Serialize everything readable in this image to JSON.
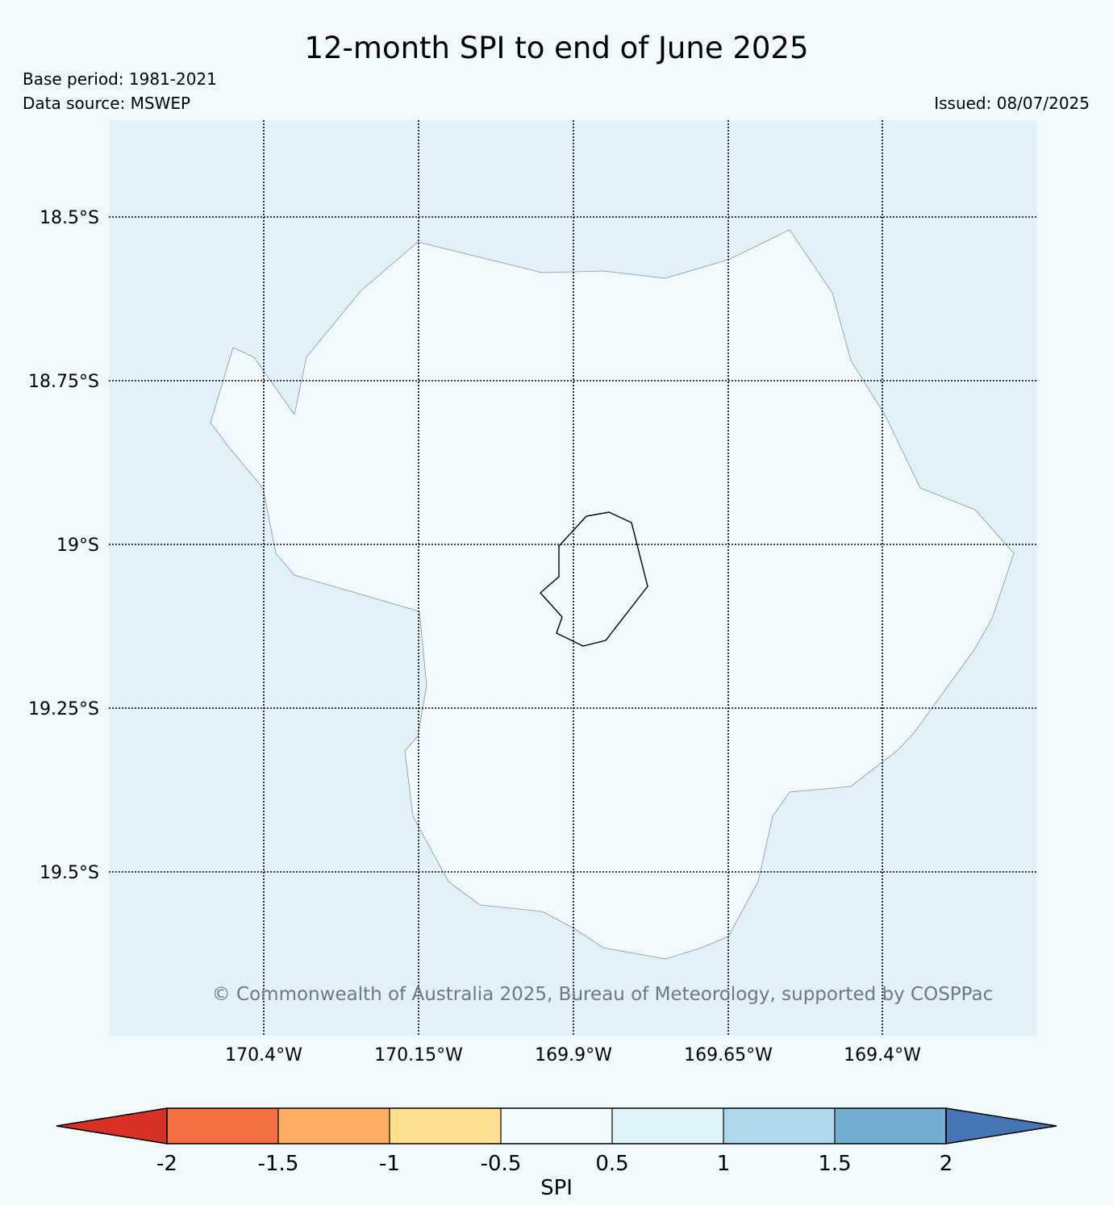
{
  "title": "12-month SPI to end of June 2025",
  "base_period": "Base period: 1981-2021",
  "data_source": "Data source: MSWEP",
  "issued": "Issued: 08/07/2025",
  "copyright": "© Commonwealth of Australia 2025, Bureau of Meteorology, supported by COSPPac",
  "map": {
    "latitude_labels": [
      "18.5°S",
      "18.75°S",
      "19°S",
      "19.25°S",
      "19.5°S"
    ],
    "longitude_labels": [
      "170.4°W",
      "170.15°W",
      "169.9°W",
      "169.65°W",
      "169.4°W"
    ],
    "background_color": "#e0f2f8",
    "land_spi_class": "-0.5 to 0.5",
    "land_color": "#f2f9fc"
  },
  "colorbar": {
    "label": "SPI",
    "ticks": [
      "-2",
      "-1.5",
      "-1",
      "-0.5",
      "0.5",
      "1",
      "1.5",
      "2"
    ],
    "colors": [
      "#d73027",
      "#f46d43",
      "#fdae61",
      "#fee090",
      "#f2f9fc",
      "#e0f3f8",
      "#abd9e9",
      "#74add1",
      "#4575b4"
    ]
  }
}
